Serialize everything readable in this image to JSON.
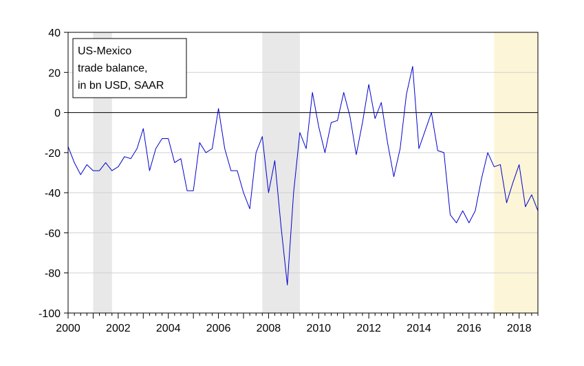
{
  "chart_data": {
    "type": "line",
    "title": "",
    "xlabel": "",
    "ylabel": "",
    "legend_lines": [
      "US-Mexico",
      "trade balance,",
      "in bn USD, SAAR"
    ],
    "legend_placement": "top-left",
    "ylim": [
      -100,
      40
    ],
    "y_ticks": [
      40,
      20,
      0,
      -20,
      -40,
      -60,
      -80,
      -100
    ],
    "xlim": [
      2000.0,
      2018.75
    ],
    "x_ticks": [
      2000,
      2002,
      2004,
      2006,
      2008,
      2010,
      2012,
      2014,
      2016,
      2018
    ],
    "grid": true,
    "zero_line": true,
    "colors": {
      "series": "#0000cc",
      "recession_shade": "#e8e8e8",
      "highlight_shade": "#fcf5d7",
      "grid": "#d0d0d0",
      "background": "#ffffff",
      "outer": "#ffffff"
    },
    "shaded_periods": [
      {
        "start": 2001.0,
        "end": 2001.75,
        "kind": "recession"
      },
      {
        "start": 2007.75,
        "end": 2009.25,
        "kind": "recession"
      },
      {
        "start": 2017.0,
        "end": 2018.75,
        "kind": "highlight"
      }
    ],
    "series": [
      {
        "x": [
          2000.0,
          2000.25,
          2000.5,
          2000.75,
          2001.0,
          2001.25,
          2001.5,
          2001.75,
          2002.0,
          2002.25,
          2002.5,
          2002.75,
          2003.0,
          2003.25,
          2003.5,
          2003.75,
          2004.0,
          2004.25,
          2004.5,
          2004.75,
          2005.0,
          2005.25,
          2005.5,
          2005.75,
          2006.0,
          2006.25,
          2006.5,
          2006.75,
          2007.0,
          2007.25,
          2007.5,
          2007.75,
          2008.0,
          2008.25,
          2008.5,
          2008.75,
          2009.0,
          2009.25,
          2009.5,
          2009.75,
          2010.0,
          2010.25,
          2010.5,
          2010.75,
          2011.0,
          2011.25,
          2011.5,
          2011.75,
          2012.0,
          2012.25,
          2012.5,
          2012.75,
          2013.0,
          2013.25,
          2013.5,
          2013.75,
          2014.0,
          2014.25,
          2014.5,
          2014.75,
          2015.0,
          2015.25,
          2015.5,
          2015.75,
          2016.0,
          2016.25,
          2016.5,
          2016.75,
          2017.0,
          2017.25,
          2017.5,
          2017.75,
          2018.0,
          2018.25,
          2018.5,
          2018.75
        ],
        "y": [
          -17,
          -25,
          -31,
          -26,
          -29,
          -29,
          -25,
          -29,
          -27,
          -22,
          -23,
          -18,
          -8,
          -29,
          -18,
          -13,
          -13,
          -25,
          -23,
          -39,
          -39,
          -15,
          -20,
          -18,
          2,
          -18,
          -29,
          -29,
          -40,
          -48,
          -20,
          -12,
          -40,
          -24,
          -57,
          -86,
          -40,
          -10,
          -18,
          10,
          -7,
          -20,
          -5,
          -4,
          10,
          -2,
          -21,
          -5,
          14,
          -3,
          5,
          -15,
          -32,
          -18,
          9,
          23,
          -18,
          -9,
          0,
          -19,
          -20,
          -51,
          -55,
          -49,
          -55,
          -49,
          -33,
          -20,
          -27,
          -26,
          -45,
          -35,
          -26,
          -47,
          -41,
          -49
        ]
      }
    ]
  }
}
